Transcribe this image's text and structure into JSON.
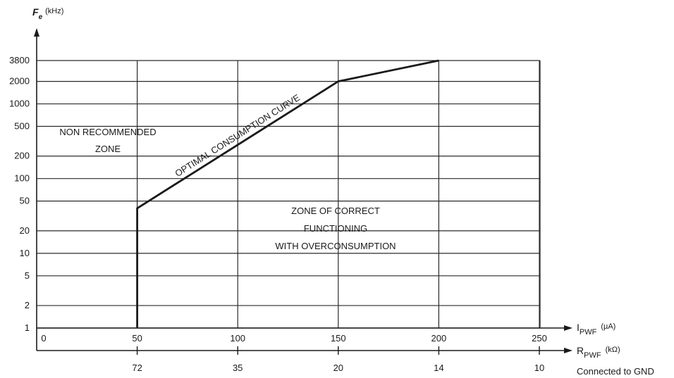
{
  "chart_data": {
    "type": "line",
    "title": "",
    "y_axis": {
      "label": "F",
      "label_sub": "e",
      "unit": "(kHz)",
      "scale": "log",
      "ticks": [
        "1",
        "2",
        "5",
        "10",
        "20",
        "50",
        "100",
        "200",
        "500",
        "1000",
        "2000",
        "3800"
      ],
      "range": [
        1,
        3800
      ]
    },
    "x_axis": {
      "label": "I",
      "label_sub": "PWF",
      "unit": "(µA)",
      "ticks": [
        "0",
        "50",
        "100",
        "150",
        "200",
        "250"
      ],
      "range": [
        0,
        250
      ]
    },
    "x2_axis": {
      "label": "R",
      "label_sub": "PWF",
      "unit": "(kΩ)",
      "ticks": [
        {
          "at": 50,
          "label": "72"
        },
        {
          "at": 100,
          "label": "35"
        },
        {
          "at": 150,
          "label": "20"
        },
        {
          "at": 200,
          "label": "14"
        },
        {
          "at": 250,
          "label": "10"
        }
      ],
      "note": "Connected to GND"
    },
    "grid": true,
    "series": [
      {
        "name": "OPTIMAL CONSUMPTION CURVE",
        "x": [
          50,
          50,
          150,
          200
        ],
        "y": [
          1,
          40,
          2000,
          3800
        ]
      }
    ],
    "annotations": [
      {
        "lines": [
          "NON RECOMMENDED",
          "ZONE"
        ]
      },
      {
        "lines": [
          "ZONE OF CORRECT",
          "FUNCTIONING",
          "WITH OVERCONSUMPTION"
        ]
      }
    ]
  }
}
